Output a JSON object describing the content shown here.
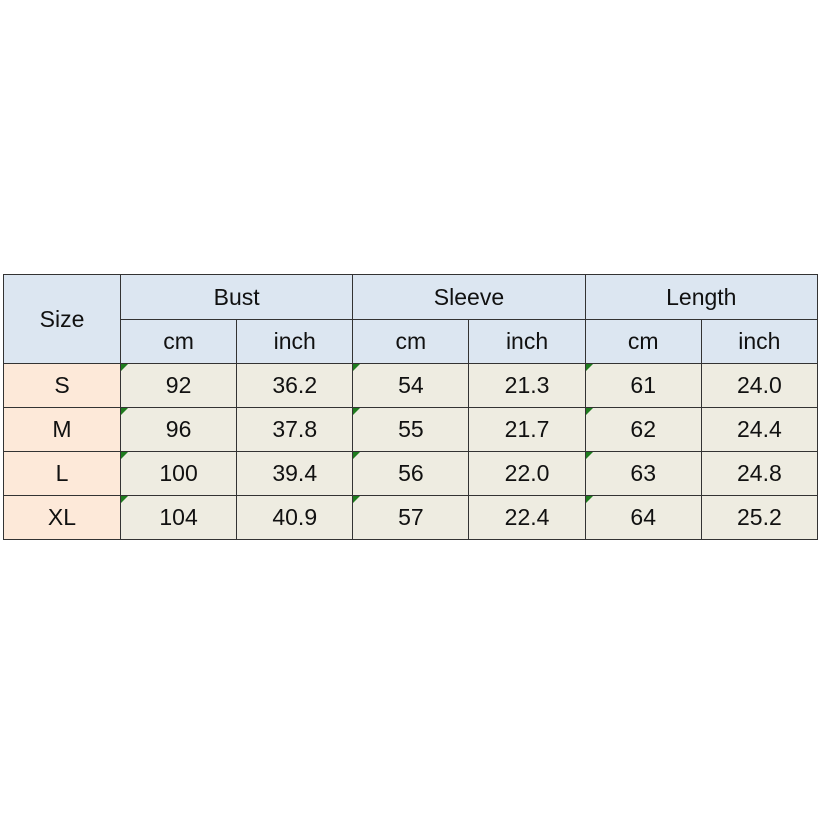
{
  "headers": {
    "size": "Size",
    "groups": [
      "Bust",
      "Sleeve",
      "Length"
    ],
    "units": [
      "cm",
      "inch",
      "cm",
      "inch",
      "cm",
      "inch"
    ]
  },
  "rows": [
    {
      "size": "S",
      "values": [
        "92",
        "36.2",
        "54",
        "21.3",
        "61",
        "24.0"
      ]
    },
    {
      "size": "M",
      "values": [
        "96",
        "37.8",
        "55",
        "21.7",
        "62",
        "24.4"
      ]
    },
    {
      "size": "L",
      "values": [
        "100",
        "39.4",
        "56",
        "22.0",
        "63",
        "24.8"
      ]
    },
    {
      "size": "XL",
      "values": [
        "104",
        "40.9",
        "57",
        "22.4",
        "64",
        "25.2"
      ]
    }
  ],
  "colors": {
    "header": "#dce6f1",
    "size_column": "#fde9d9",
    "cells": "#eeece1",
    "indicator": "#1e7b1e"
  }
}
